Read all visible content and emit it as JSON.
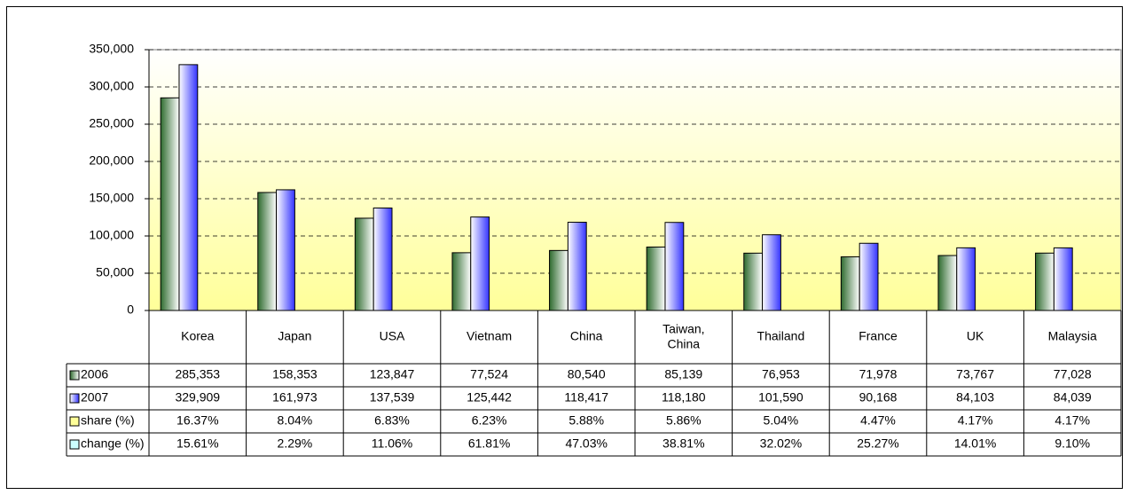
{
  "chart_data": {
    "type": "bar",
    "categories": [
      "Korea",
      "Japan",
      "USA",
      "Vietnam",
      "China",
      "Taiwan,\nChina",
      "Thailand",
      "France",
      "UK",
      "Malaysia"
    ],
    "series": [
      {
        "name": "2006",
        "color": "#2f6b2f",
        "values": [
          285353,
          158353,
          123847,
          77524,
          80540,
          85139,
          76953,
          71978,
          73767,
          77028
        ],
        "value_labels": [
          "285,353",
          "158,353",
          "123,847",
          "77,524",
          "80,540",
          "85,139",
          "76,953",
          "71,978",
          "73,767",
          "77,028"
        ]
      },
      {
        "name": "2007",
        "color": "#3333ff",
        "values": [
          329909,
          161973,
          137539,
          125442,
          118417,
          118180,
          101590,
          90168,
          84103,
          84039
        ],
        "value_labels": [
          "329,909",
          "161,973",
          "137,539",
          "125,442",
          "118,417",
          "118,180",
          "101,590",
          "90,168",
          "84,103",
          "84,039"
        ]
      }
    ],
    "table_rows": [
      {
        "name": "share (%)",
        "color": "#ffff99",
        "values": [
          16.37,
          8.04,
          6.83,
          6.23,
          5.88,
          5.86,
          5.04,
          4.47,
          4.17,
          4.17
        ],
        "value_labels": [
          "16.37%",
          "8.04%",
          "6.83%",
          "6.23%",
          "5.88%",
          "5.86%",
          "5.04%",
          "4.47%",
          "4.17%",
          "4.17%"
        ]
      },
      {
        "name": "change (%)",
        "color": "#ccffff",
        "values": [
          15.61,
          2.29,
          11.06,
          61.81,
          47.03,
          38.81,
          32.02,
          25.27,
          14.01,
          9.1
        ],
        "value_labels": [
          "15.61%",
          "2.29%",
          "11.06%",
          "61.81%",
          "47.03%",
          "38.81%",
          "32.02%",
          "25.27%",
          "14.01%",
          "9.10%"
        ]
      }
    ],
    "ylim": [
      0,
      350000
    ],
    "yticks": [
      0,
      {
        "value": 50000,
        "label": "50,000"
      },
      {
        "value": 100000,
        "label": "100,000"
      },
      {
        "value": 150000,
        "label": "150,000"
      },
      {
        "value": 200000,
        "label": "200,000"
      },
      {
        "value": 250000,
        "label": "250,000"
      },
      {
        "value": 300000,
        "label": "300,000"
      },
      {
        "value": 350000,
        "label": "350,000"
      }
    ],
    "grid": true
  }
}
